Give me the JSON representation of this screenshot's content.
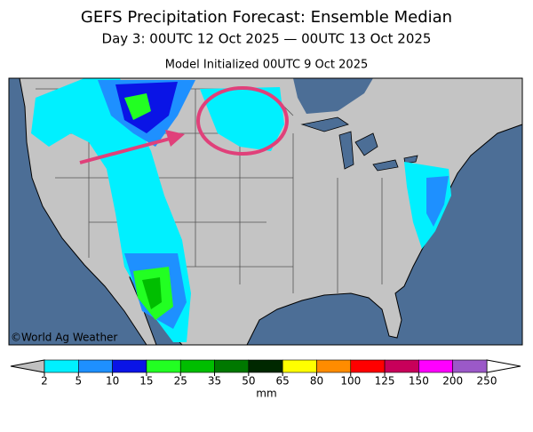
{
  "header": {
    "title": "GEFS Precipitation Forecast: Ensemble Median",
    "subtitle": "Day 3: 00UTC 12 Oct 2025 — 00UTC 13 Oct 2025",
    "initialized": "Model Initialized 00UTC 9 Oct 2025"
  },
  "map": {
    "credit": "©World Ag Weather"
  },
  "colorbar": {
    "ticks": [
      2,
      5,
      10,
      15,
      25,
      35,
      50,
      65,
      80,
      100,
      125,
      150,
      200,
      250
    ],
    "colors": [
      "#00f0ff",
      "#1e90ff",
      "#0a14e6",
      "#22ff22",
      "#00be00",
      "#007800",
      "#002800",
      "#ffff00",
      "#ff8c00",
      "#ff0000",
      "#c8005a",
      "#ff00ff",
      "#9b59c8"
    ],
    "unit": "mm"
  }
}
